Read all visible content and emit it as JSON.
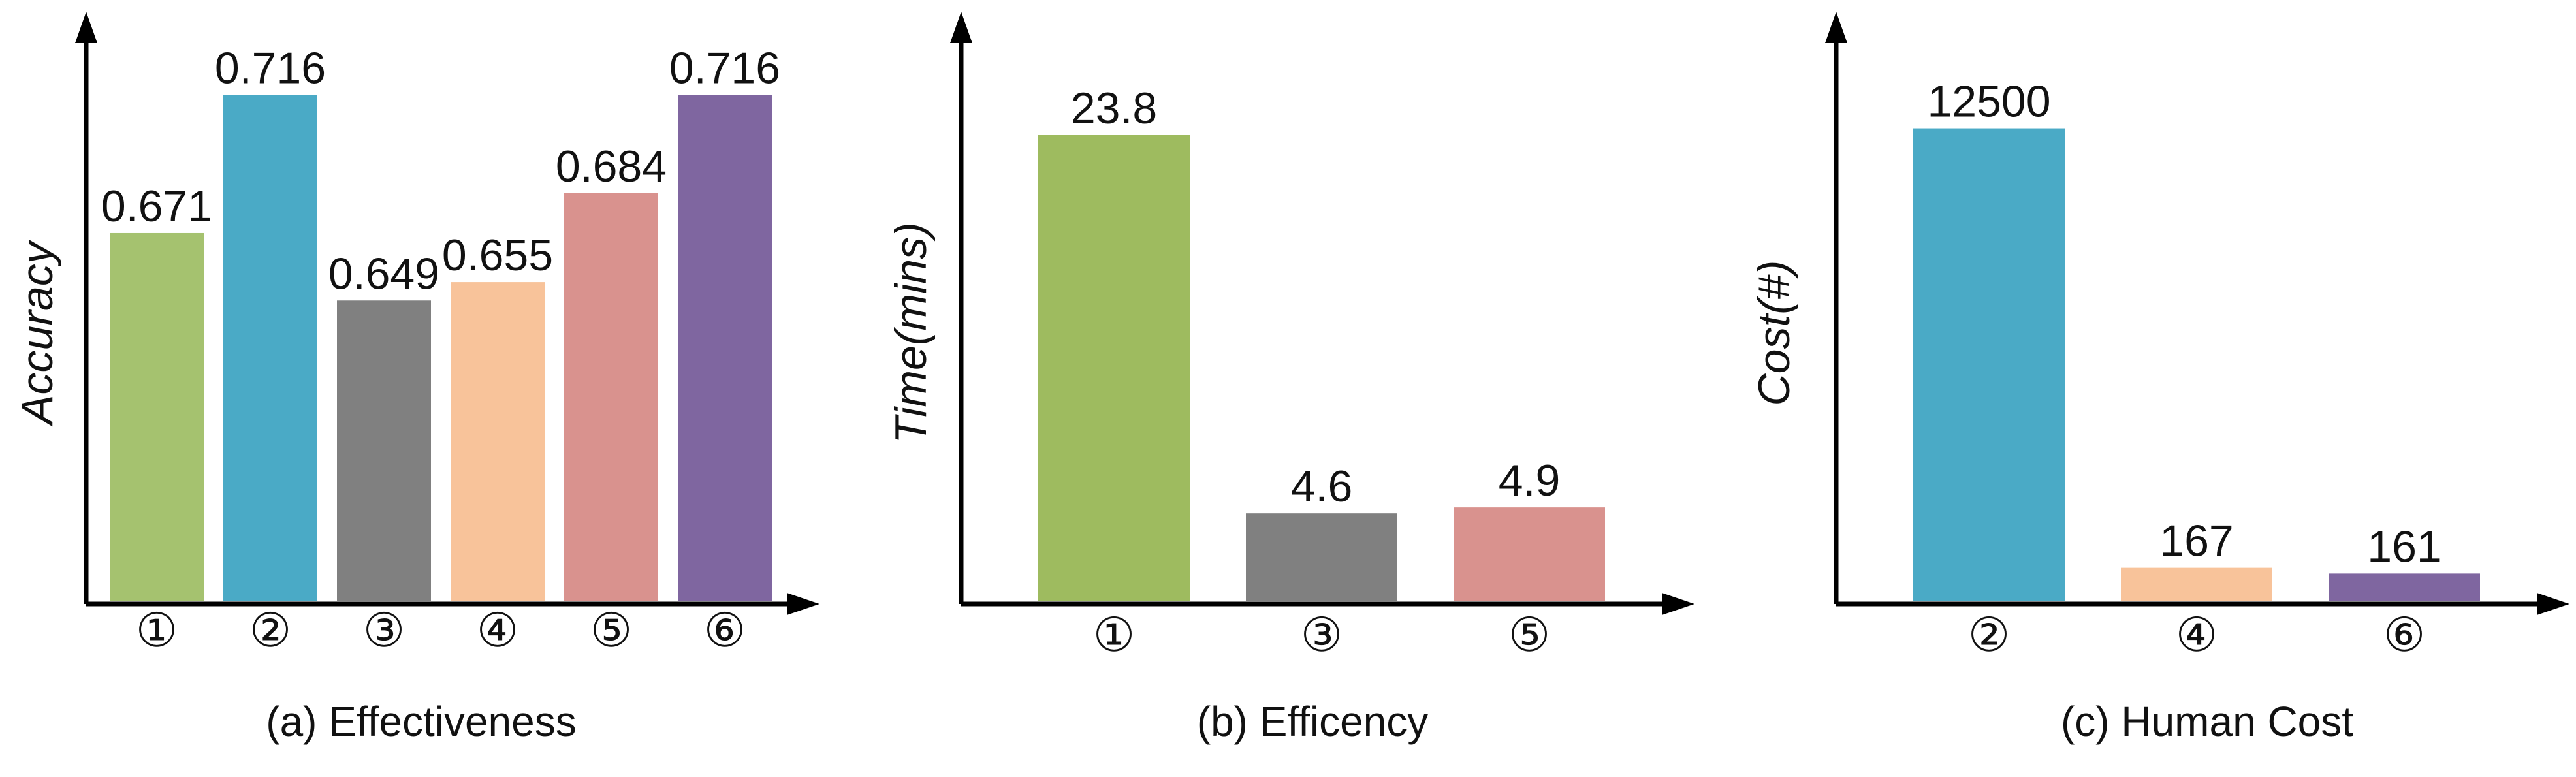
{
  "chart_data": [
    {
      "type": "bar",
      "title": "(a) Effectiveness",
      "ylabel": "Accuracy",
      "xlabel": "",
      "categories": [
        "①",
        "②",
        "③",
        "④",
        "⑤",
        "⑥"
      ],
      "values": [
        0.671,
        0.716,
        0.649,
        0.655,
        0.684,
        0.716
      ],
      "value_labels": [
        "0.671",
        "0.716",
        "0.649",
        "0.655",
        "0.684",
        "0.716"
      ],
      "colors": [
        "#a5c26f",
        "#4aaac6",
        "#808080",
        "#f8c39a",
        "#d9928e",
        "#7f66a0"
      ],
      "ylim": [
        0.55,
        0.73
      ]
    },
    {
      "type": "bar",
      "title": "(b) Efficency",
      "ylabel": "Time(mins)",
      "xlabel": "",
      "categories": [
        "①",
        "③",
        "⑤"
      ],
      "values": [
        23.8,
        4.6,
        4.9
      ],
      "value_labels": [
        "23.8",
        "4.6",
        "4.9"
      ],
      "colors": [
        "#9ebb5f",
        "#808080",
        "#d9928e"
      ],
      "ylim": [
        0,
        28
      ]
    },
    {
      "type": "bar",
      "title": "(c) Human Cost",
      "ylabel": "Cost(#)",
      "xlabel": "",
      "categories": [
        "②",
        "④",
        "⑥"
      ],
      "values": [
        12500,
        167,
        161
      ],
      "value_labels": [
        "12500",
        "167",
        "161"
      ],
      "colors": [
        "#4aaac6",
        "#f8c39a",
        "#7f66a0"
      ],
      "scale": "broken (small values shown as short bars)",
      "display_values": [
        12500,
        950,
        800
      ],
      "ylim": [
        0,
        14500
      ]
    }
  ]
}
